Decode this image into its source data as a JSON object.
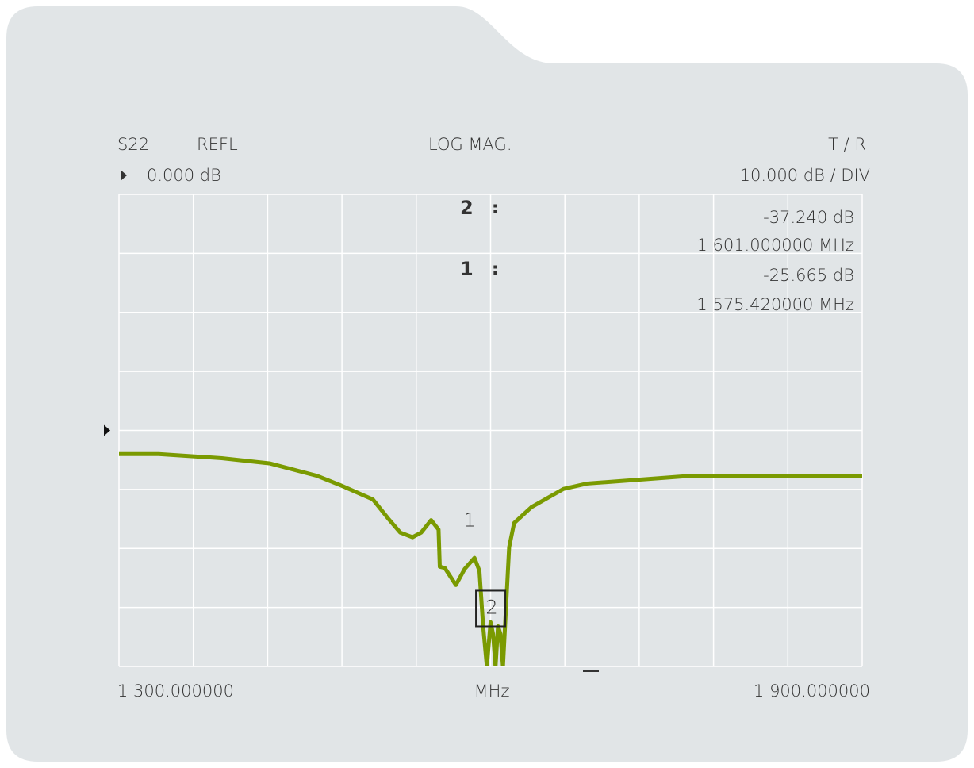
{
  "chart_data": {
    "type": "line",
    "parameter": "S22",
    "format": "REFL",
    "scale_type": "LOG  MAG.",
    "channel": "T / R",
    "ref": {
      "value": 0,
      "label": "0.000  dB"
    },
    "scale_label": "10.000  dB / DIV",
    "x_unit": "MHz",
    "xlim": [
      1300,
      1900
    ],
    "xticks": [
      {
        "value": 1300,
        "label": "1  300.000000"
      },
      {
        "value": 1360,
        "label": null
      },
      {
        "value": 1420,
        "label": null
      },
      {
        "value": 1480,
        "label": null
      },
      {
        "value": 1540,
        "label": null
      },
      {
        "value": 1600,
        "label": null
      },
      {
        "value": 1660,
        "label": null
      },
      {
        "value": 1720,
        "label": null
      },
      {
        "value": 1780,
        "label": null
      },
      {
        "value": 1840,
        "label": null
      },
      {
        "value": 1900,
        "label": "1  900.000000"
      }
    ],
    "ylim": [
      -40,
      40
    ],
    "yticks": [
      -40,
      -30,
      -20,
      -10,
      0,
      10,
      20,
      30,
      40
    ],
    "grid": true,
    "series": [
      {
        "color": "#7a9a01",
        "x": [
          1300,
          1332,
          1383,
          1422,
          1460,
          1479,
          1505,
          1518,
          1527,
          1537,
          1544,
          1552,
          1558,
          1559,
          1563,
          1572,
          1579,
          1587,
          1591,
          1594,
          1597,
          1600,
          1602,
          1604,
          1606,
          1608,
          1610,
          1614,
          1615,
          1619,
          1633,
          1659,
          1678,
          1755,
          1864,
          1900
        ],
        "values": [
          -4.0,
          -4.0,
          -4.7,
          -5.6,
          -7.7,
          -9.3,
          -11.7,
          -15.1,
          -17.3,
          -18.1,
          -17.3,
          -15.2,
          -16.8,
          -23.1,
          -23.3,
          -26.2,
          -23.5,
          -21.6,
          -23.8,
          -33.2,
          -40,
          -32.5,
          -34.5,
          -40,
          -33.2,
          -34.5,
          -40,
          -23.8,
          -19.8,
          -15.7,
          -13.0,
          -9.9,
          -9.0,
          -7.8,
          -7.8,
          -7.7
        ]
      }
    ],
    "markers": [
      {
        "label": "2",
        "x": 1601,
        "y": -37.24,
        "value_label": "-37.240  dB",
        "freq_label": "1   601.000000  MHz",
        "active": true
      },
      {
        "label": "1",
        "x": 1575.42,
        "y": -25.665,
        "value_label": "-25.665 dB",
        "freq_label": "1  575.420000 MHz",
        "active": false
      }
    ]
  }
}
